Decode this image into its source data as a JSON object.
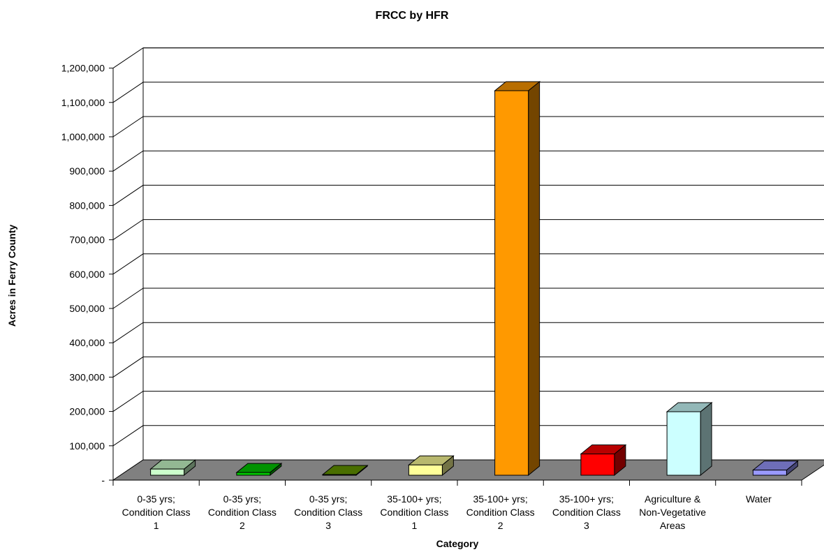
{
  "chart_data": {
    "type": "bar",
    "title": "FRCC by HFR",
    "xlabel": "Category",
    "ylabel": "Acres in Ferry County",
    "ylim": [
      0,
      1200000
    ],
    "y_ticks": [
      "-",
      "100,000",
      "200,000",
      "300,000",
      "400,000",
      "500,000",
      "600,000",
      "700,000",
      "800,000",
      "900,000",
      "1,000,000",
      "1,100,000",
      "1,200,000"
    ],
    "categories": [
      [
        "0-35 yrs;",
        "Condition Class",
        "1"
      ],
      [
        "0-35 yrs;",
        "Condition Class",
        "2"
      ],
      [
        "0-35 yrs;",
        "Condition Class",
        "3"
      ],
      [
        "35-100+ yrs;",
        "Condition Class",
        "1"
      ],
      [
        "35-100+ yrs;",
        "Condition Class",
        "2"
      ],
      [
        "35-100+ yrs;",
        "Condition Class",
        "3"
      ],
      [
        "Agriculture &",
        "Non-Vegetative",
        "Areas"
      ],
      [
        "Water"
      ]
    ],
    "values": [
      18000,
      8000,
      2000,
      30000,
      1120000,
      62000,
      185000,
      15000
    ],
    "colors": [
      "#CCFFCC",
      "#00CC00",
      "#669900",
      "#FFFF99",
      "#FF9900",
      "#FF0000",
      "#CCFFFF",
      "#9999FF"
    ],
    "grid": true,
    "legend": "none",
    "three_d": true,
    "floor_color": "#808080"
  }
}
